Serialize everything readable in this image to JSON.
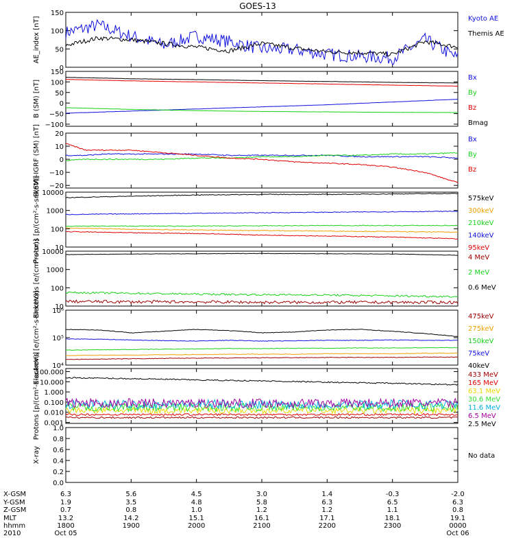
{
  "title": "GOES-13",
  "colors": {
    "black": "#000000",
    "blue": "#1010e0",
    "red": "#e00000",
    "green": "#18d018",
    "darkred": "#a00000",
    "orange": "#f0a000",
    "cyan": "#00b0e0",
    "purple": "#a000a0",
    "yellow": "#e8d800",
    "lime": "#30e030"
  },
  "chart_data": [
    {
      "id": "ae",
      "type": "line",
      "ylabel": "AE_index [nT]",
      "ylim": [
        0,
        150
      ],
      "scale": "linear",
      "yticks": [
        0,
        50,
        100,
        150
      ],
      "yticklabels": [
        "0",
        "50",
        "100",
        "150"
      ],
      "x": [
        0,
        0.5,
        1,
        1.5,
        2,
        2.5,
        3,
        3.5,
        4,
        4.5,
        5,
        5.5,
        6
      ],
      "series": [
        {
          "name": "Kyoto AE",
          "color": "#1010e0",
          "values": [
            95,
            115,
            85,
            60,
            85,
            70,
            50,
            48,
            35,
            30,
            25,
            75,
            25
          ],
          "noise": 18
        },
        {
          "name": "Themis AE",
          "color": "#000000",
          "values": [
            60,
            80,
            75,
            65,
            55,
            45,
            65,
            52,
            42,
            40,
            35,
            70,
            55
          ],
          "noise": 6
        }
      ]
    },
    {
      "id": "b",
      "type": "line",
      "ylabel": "B (SM) [nT]",
      "ylim": [
        -110,
        150
      ],
      "scale": "linear",
      "yticks": [
        -100,
        -50,
        0,
        50,
        100,
        150
      ],
      "yticklabels": [
        "−100",
        "−50",
        "0",
        "50",
        "100",
        "150"
      ],
      "x": [
        0,
        1,
        2,
        3,
        4,
        5,
        6
      ],
      "series": [
        {
          "name": "Bx",
          "color": "#1010e0",
          "values": [
            -48,
            -38,
            -28,
            -18,
            -8,
            5,
            18
          ],
          "noise": 0.5
        },
        {
          "name": "By",
          "color": "#18d018",
          "values": [
            -22,
            -30,
            -36,
            -40,
            -42,
            -44,
            -45
          ],
          "noise": 0.5
        },
        {
          "name": "Bz",
          "color": "#e00000",
          "values": [
            112,
            105,
            100,
            95,
            90,
            85,
            80
          ],
          "noise": 0.5
        },
        {
          "name": "Bmag",
          "color": "#000000",
          "values": [
            122,
            115,
            111,
            106,
            102,
            98,
            95
          ],
          "noise": 0.5
        }
      ]
    },
    {
      "id": "bigrf",
      "type": "line",
      "ylabel": "B(SM)-IGRF (SM) [nT]",
      "ylim": [
        -22,
        20
      ],
      "scale": "linear",
      "yticks": [
        -20,
        -10,
        0,
        10,
        20
      ],
      "yticklabels": [
        "−20",
        "−10",
        "0",
        "10",
        "20"
      ],
      "x": [
        0,
        0.3,
        0.6,
        1,
        1.5,
        2,
        2.5,
        3,
        3.5,
        4,
        4.5,
        5,
        5.5,
        6
      ],
      "series": [
        {
          "name": "Bx",
          "color": "#1010e0",
          "values": [
            3,
            3,
            4,
            4,
            4,
            4,
            3,
            3,
            3,
            3,
            2,
            2,
            2,
            1
          ],
          "noise": 0.4
        },
        {
          "name": "By",
          "color": "#18d018",
          "values": [
            -1,
            0,
            0,
            0,
            0,
            1,
            1,
            2,
            2,
            3,
            3,
            4,
            4,
            5
          ],
          "noise": 0.4
        },
        {
          "name": "Bz",
          "color": "#e00000",
          "values": [
            12,
            7,
            7,
            7,
            5,
            3,
            1,
            0,
            -2,
            -3,
            -4,
            -6,
            -10,
            -18
          ],
          "noise": 0.4
        }
      ]
    },
    {
      "id": "protons_low",
      "type": "line",
      "ylabel": "Protons [p/(cm²-s-sr-keV)]",
      "ylim": [
        10,
        10000
      ],
      "scale": "log",
      "yticks": [
        10,
        100,
        1000,
        10000
      ],
      "yticklabels": [
        "10",
        "100",
        "1000",
        "10000"
      ],
      "x": [
        0,
        1,
        2,
        3,
        4,
        5,
        6
      ],
      "series": [
        {
          "name": "575keV",
          "color": "#000000",
          "values": [
            5000,
            6000,
            7000,
            7500,
            7500,
            8000,
            8500
          ],
          "noise": 0.02
        },
        {
          "name": "300keV",
          "color": "#f0a000",
          "values": [
            110,
            95,
            85,
            80,
            75,
            70,
            65
          ],
          "noise": 0.02
        },
        {
          "name": "210keV",
          "color": "#18d018",
          "values": [
            140,
            140,
            140,
            145,
            150,
            150,
            150
          ],
          "noise": 0.02
        },
        {
          "name": "140keV",
          "color": "#1010e0",
          "values": [
            600,
            650,
            700,
            750,
            800,
            850,
            900
          ],
          "noise": 0.02
        },
        {
          "name": "95keV",
          "color": "#e00000",
          "values": [
            70,
            60,
            55,
            45,
            40,
            35,
            28
          ],
          "noise": 0.02
        }
      ]
    },
    {
      "id": "electrons_mev",
      "type": "line",
      "ylabel": "Electrons [e/(cm²-s-sr)]",
      "ylim": [
        10,
        10000
      ],
      "scale": "log",
      "yticks": [
        10,
        100,
        1000,
        10000
      ],
      "yticklabels": [
        "10",
        "100",
        "1000",
        "10000"
      ],
      "x": [
        0,
        1,
        2,
        3,
        4,
        5,
        6
      ],
      "series": [
        {
          "name": "4 MeV",
          "color": "#a00000",
          "values": [
            18,
            17,
            17,
            16,
            16,
            16,
            16
          ],
          "noise": 0.08
        },
        {
          "name": "2 MeV",
          "color": "#18d018",
          "values": [
            55,
            50,
            45,
            42,
            40,
            36,
            33
          ],
          "noise": 0.05
        },
        {
          "name": "0.6 MeV",
          "color": "#000000",
          "values": [
            6500,
            7000,
            7200,
            7500,
            7200,
            7000,
            6000
          ],
          "noise": 0.01
        }
      ]
    },
    {
      "id": "electrons_kev",
      "type": "line",
      "ylabel": "Electrons [e/(cm²-s-sr-keV)]",
      "ylim": [
        10000,
        1000000
      ],
      "scale": "log",
      "yticks": [
        10000,
        100000,
        1000000
      ],
      "yticklabels": [
        "10⁴",
        "10⁵",
        "10⁶"
      ],
      "x": [
        0,
        0.5,
        1,
        1.5,
        2,
        2.5,
        3,
        3.5,
        4,
        4.5,
        5,
        5.5,
        6
      ],
      "series": [
        {
          "name": "475keV",
          "color": "#a00000",
          "values": [
            16000,
            16500,
            17000,
            17500,
            18000,
            18000,
            18500,
            18500,
            19000,
            19000,
            19000,
            19500,
            19500
          ],
          "noise": 0.01
        },
        {
          "name": "275keV",
          "color": "#f0a000",
          "values": [
            22000,
            23000,
            23000,
            24000,
            24000,
            25000,
            25000,
            25000,
            26000,
            26000,
            26000,
            27000,
            27000
          ],
          "noise": 0.01
        },
        {
          "name": "150keV",
          "color": "#18d018",
          "values": [
            35000,
            36000,
            37000,
            38000,
            39000,
            40000,
            40000,
            41000,
            41000,
            42000,
            42000,
            43000,
            43000
          ],
          "noise": 0.01
        },
        {
          "name": "75keV",
          "color": "#1010e0",
          "values": [
            90000,
            88000,
            82000,
            78000,
            75000,
            80000,
            75000,
            77000,
            80000,
            80000,
            82000,
            80000,
            80000
          ],
          "noise": 0.01
        },
        {
          "name": "40keV",
          "color": "#000000",
          "values": [
            200000,
            190000,
            150000,
            170000,
            200000,
            180000,
            150000,
            160000,
            190000,
            200000,
            170000,
            140000,
            110000
          ],
          "noise": 0.01
        }
      ]
    },
    {
      "id": "protons_mev",
      "type": "line",
      "ylabel": "Protons [p/(cm²-s-sr-keV)]",
      "ylim": [
        0.0008,
        200
      ],
      "scale": "log",
      "yticks": [
        0.001,
        0.01,
        0.1,
        1,
        10,
        100
      ],
      "yticklabels": [
        "0.001",
        "0.010",
        "0.100",
        "1.000",
        "10.000",
        "100.000"
      ],
      "x": [
        0,
        1,
        2,
        3,
        4,
        5,
        6
      ],
      "series": [
        {
          "name": "433 MeV",
          "color": "#a00000",
          "values": [
            0.003,
            0.003,
            0.003,
            0.003,
            0.003,
            0.003,
            0.003
          ],
          "noise": 0.08
        },
        {
          "name": "165 MeV",
          "color": "#e00000",
          "values": [
            0.006,
            0.006,
            0.006,
            0.006,
            0.006,
            0.006,
            0.006
          ],
          "noise": 0.1
        },
        {
          "name": "63.1 MeV",
          "color": "#e8d800",
          "values": [
            0.015,
            0.015,
            0.015,
            0.015,
            0.015,
            0.015,
            0.015
          ],
          "noise": 0.3
        },
        {
          "name": "30.6 MeV",
          "color": "#30e030",
          "values": [
            0.03,
            0.03,
            0.03,
            0.03,
            0.03,
            0.03,
            0.03
          ],
          "noise": 0.4
        },
        {
          "name": "11.6 MeV",
          "color": "#00b0e0",
          "values": [
            0.06,
            0.06,
            0.06,
            0.06,
            0.06,
            0.06,
            0.06
          ],
          "noise": 0.45
        },
        {
          "name": "6.5 MeV",
          "color": "#a000a0",
          "values": [
            0.08,
            0.08,
            0.08,
            0.08,
            0.08,
            0.08,
            0.08
          ],
          "noise": 0.45
        },
        {
          "name": "2.5 MeV",
          "color": "#000000",
          "values": [
            25,
            20,
            15,
            12,
            9,
            7,
            5
          ],
          "noise": 0.06
        }
      ]
    },
    {
      "id": "xray",
      "type": "line",
      "ylabel": "X-ray",
      "ylim": [
        0,
        1
      ],
      "scale": "linear",
      "yticks": [
        0,
        0.2,
        0.4,
        0.6,
        0.8,
        1.0
      ],
      "yticklabels": [
        "0.0",
        "0.2",
        "0.4",
        "0.6",
        "0.8",
        "1.0"
      ],
      "x": [],
      "series": [],
      "nodata": "No data"
    }
  ],
  "xaxis": {
    "row_labels": [
      "X-GSM",
      "Y-GSM",
      "Z-GSM",
      "MLT",
      "hhmm",
      "2010"
    ],
    "columns": [
      [
        "6.3",
        "1.9",
        "0.7",
        "13.2",
        "1800",
        "Oct 05"
      ],
      [
        "5.6",
        "3.5",
        "0.8",
        "14.2",
        "1900",
        ""
      ],
      [
        "4.5",
        "4.8",
        "1.0",
        "15.1",
        "2000",
        ""
      ],
      [
        "3.0",
        "5.8",
        "1.2",
        "16.1",
        "2100",
        ""
      ],
      [
        "1.4",
        "6.3",
        "1.2",
        "17.1",
        "2200",
        ""
      ],
      [
        "-0.3",
        "6.5",
        "1.1",
        "18.1",
        "2300",
        ""
      ],
      [
        "-2.0",
        "6.3",
        "0.8",
        "19.1",
        "0000",
        "Oct 06"
      ]
    ]
  }
}
